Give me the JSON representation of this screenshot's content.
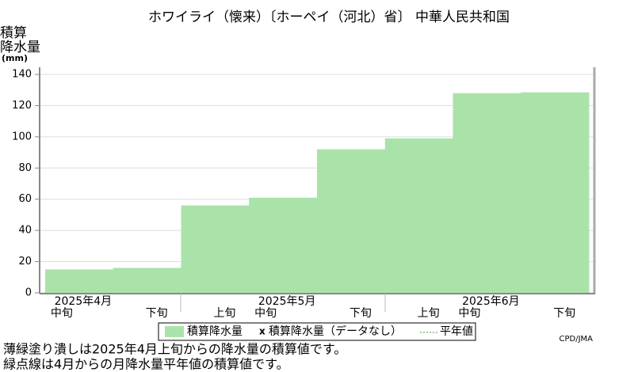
{
  "chart_data": {
    "type": "step-area",
    "title": "ホワイライ（懐来）〔ホーペイ（河北）省〕 中華人民共和国",
    "ylabel": [
      "積算",
      "降水量",
      "(mm)"
    ],
    "categories": [
      "中旬",
      "下旬",
      "上旬",
      "中旬",
      "下旬",
      "上旬",
      "中旬",
      "下旬"
    ],
    "months": [
      "2025年4月",
      null,
      null,
      "2025年5月",
      null,
      null,
      "2025年6月",
      null
    ],
    "series": [
      {
        "name": "積算降水量",
        "color": "#aae3aa",
        "values": [
          15,
          16,
          56,
          61,
          92,
          99,
          128,
          128.5
        ]
      }
    ],
    "legend_extra": [
      "積算降水量（データなし）",
      "平年値"
    ],
    "ylim": [
      0,
      140
    ],
    "yticks": [
      0,
      20,
      40,
      60,
      80,
      100,
      120,
      140
    ],
    "grid": true,
    "notes": [
      "薄緑塗り潰しは2025年4月上旬からの降水量の積算値です。",
      "緑点線は4月からの月降水量平年値の積算値です。"
    ],
    "credit": "CPD/JMA"
  }
}
